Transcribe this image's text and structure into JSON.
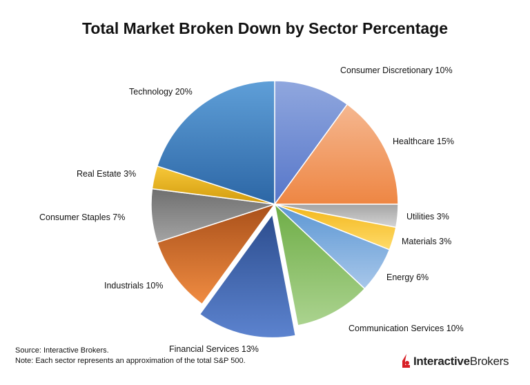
{
  "chart_data": {
    "type": "pie",
    "title": "Total Market Broken Down by Sector Percentage",
    "start": "top",
    "direction": "clockwise",
    "categories": [
      "Consumer Discretionary",
      "Healthcare",
      "Utilities",
      "Materials",
      "Energy",
      "Communication Services",
      "Financial Services",
      "Industrials",
      "Consumer Staples",
      "Real Estate",
      "Technology"
    ],
    "values": [
      10,
      15,
      3,
      3,
      6,
      10,
      13,
      10,
      7,
      3,
      20
    ],
    "unit": "%",
    "exploded": [
      "Financial Services"
    ],
    "colors": [
      [
        "#5676c9",
        "#90a7de"
      ],
      [
        "#ee8643",
        "#f5b790"
      ],
      [
        "#a4a4a4",
        "#d4d4d4"
      ],
      [
        "#f2b61a",
        "#ffdb6a"
      ],
      [
        "#5b96d3",
        "#a8c7ea"
      ],
      [
        "#6ead46",
        "#abd38f"
      ],
      [
        "#2c4d8e",
        "#5c83cf"
      ],
      [
        "#a9501a",
        "#f08c42"
      ],
      [
        "#6f6f6f",
        "#a4a4a4"
      ],
      [
        "#d29b0c",
        "#f7c83a"
      ],
      [
        "#2c66a5",
        "#5f9fd8"
      ]
    ]
  },
  "footer": {
    "source": "Source: Interactive Brokers.",
    "note": "Note: Each sector represents an approximation of the total S&P 500."
  },
  "logo": {
    "part1": "Interactive",
    "part2": "Brokers",
    "color": "#d81f26"
  }
}
